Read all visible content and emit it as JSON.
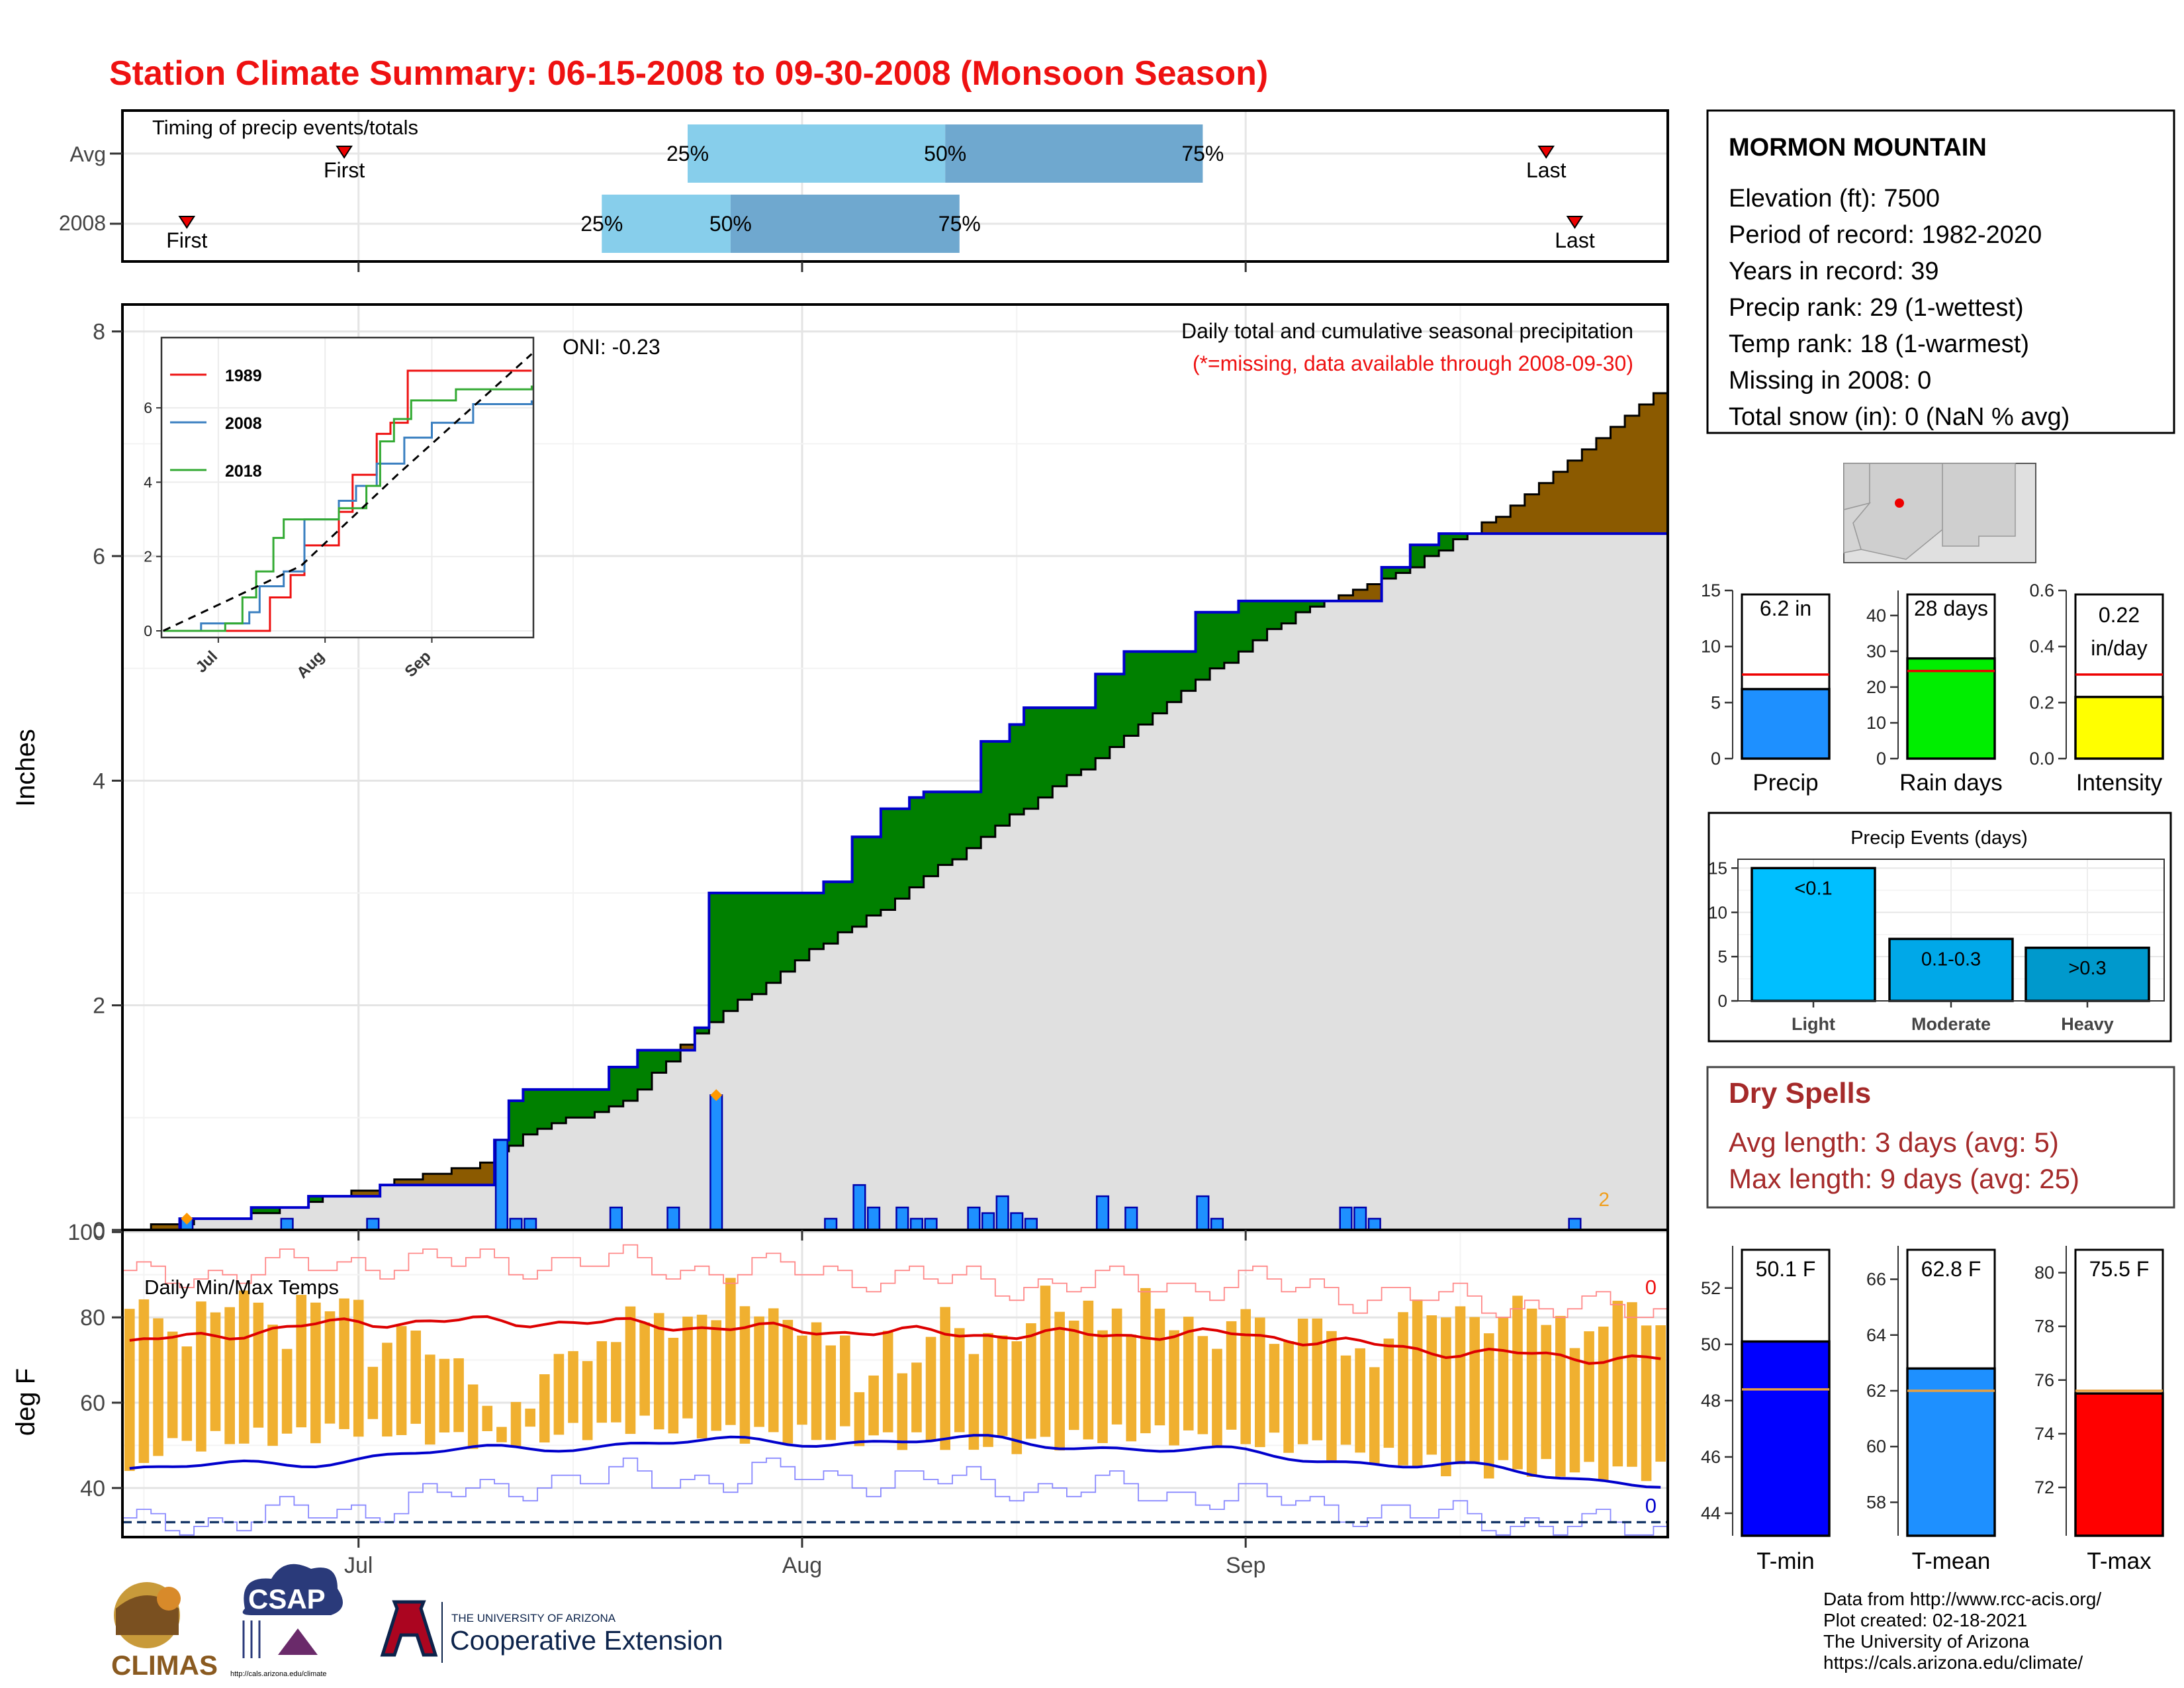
{
  "title": "Station Climate Summary: 06-15-2008 to 09-30-2008 (Monsoon Season)",
  "timing": {
    "label": "Timing of precip events/totals",
    "rows": [
      "Avg",
      "2008"
    ],
    "first_label": "First",
    "last_label": "Last",
    "pct_labels": [
      "25%",
      "50%",
      "75%"
    ]
  },
  "station": {
    "name": "MORMON MOUNTAIN",
    "lines": [
      "Elevation (ft): 7500",
      "Period of record: 1982-2020",
      "Years in record: 39",
      "Precip rank: 29 (1-wettest)",
      "Temp rank: 18 (1-warmest)",
      "Missing in 2008: 0",
      "Total snow (in): 0 (NaN % avg)"
    ]
  },
  "precip_panel": {
    "ylabel": "Inches",
    "heading": "Daily total and cumulative seasonal precipitation",
    "missing_note": "(*=missing, data available through 2008-09-30)",
    "oni": "ONI: -0.23",
    "corner_count": "2",
    "yticks": [
      "0",
      "2",
      "4",
      "6",
      "8"
    ]
  },
  "inset": {
    "legend": [
      "1989",
      "2008",
      "2018"
    ],
    "yticks": [
      "0",
      "2",
      "4",
      "6"
    ],
    "xticks": [
      "Jul",
      "Aug",
      "Sep"
    ]
  },
  "temp_panel": {
    "ylabel": "deg F",
    "heading": "Daily Min/Max Temps",
    "top_count": "0",
    "bottom_count": "0",
    "yticks": [
      "40",
      "60",
      "80",
      "100"
    ]
  },
  "xaxis": {
    "ticks": [
      "Jul",
      "Aug",
      "Sep"
    ]
  },
  "summary_bars": {
    "precip": {
      "label": "Precip",
      "value_text": "6.2 in",
      "yticks": [
        "0",
        "5",
        "10",
        "15"
      ]
    },
    "raindays": {
      "label": "Rain days",
      "value_text": "28 days",
      "yticks": [
        "0",
        "10",
        "20",
        "30",
        "40"
      ]
    },
    "intensity": {
      "label": "Intensity",
      "value_text_1": "0.22",
      "value_text_2": "in/day",
      "yticks": [
        "0.0",
        "0.2",
        "0.4",
        "0.6"
      ]
    }
  },
  "events": {
    "title": "Precip Events (days)",
    "yticks": [
      "0",
      "5",
      "10",
      "15"
    ]
  },
  "dry_spells": {
    "title": "Dry Spells",
    "avg": "Avg length: 3 days (avg: 5)",
    "max": "Max length: 9 days (avg: 25)"
  },
  "temp_bars": {
    "tmin": {
      "label": "T-min",
      "value_text": "50.1 F",
      "yticks": [
        "44",
        "46",
        "48",
        "50",
        "52"
      ]
    },
    "tmean": {
      "label": "T-mean",
      "value_text": "62.8 F",
      "yticks": [
        "58",
        "60",
        "62",
        "64",
        "66"
      ]
    },
    "tmax": {
      "label": "T-max",
      "value_text": "75.5 F",
      "yticks": [
        "72",
        "74",
        "76",
        "78",
        "80"
      ]
    }
  },
  "footer": {
    "lines": [
      "Data from http://www.rcc-acis.org/",
      "Plot created: 02-18-2021",
      "The University of Arizona",
      "https://cals.arizona.edu/climate/"
    ],
    "logos": {
      "climas": "CLIMAS",
      "csap": "CSAP",
      "csap_url": "http://cals.arizona.edu/climate",
      "ua_small": "THE UNIVERSITY OF ARIZONA",
      "ua_big": "Cooperative Extension"
    }
  },
  "colors": {
    "title": "#ee1111",
    "green_surplus": "#008000",
    "brown_deficit": "#8b5a00",
    "normal_fill": "#e0e0e0",
    "daily_bar": "#1e90ff",
    "line_2008": "#0000cc",
    "quartile_light": "#87ceeb",
    "quartile_dark": "#6fa8cf",
    "temp_bar": "#f0b030",
    "avg_max": "#dd0000",
    "avg_min": "#0000cc",
    "dry_spells": "#a52a2a"
  },
  "chart_data": [
    {
      "type": "bar",
      "name": "Timing of precip events/totals",
      "categories": [
        "Avg",
        "2008"
      ],
      "x_range_dates": [
        "2008-06-15",
        "2008-09-30"
      ],
      "avg": {
        "first": "2008-06-30",
        "p25": "2008-07-24",
        "p50": "2008-08-11",
        "p75": "2008-08-29",
        "last": "2008-09-22"
      },
      "y2008": {
        "first": "2008-06-19",
        "p25": "2008-07-18",
        "p50": "2008-07-27",
        "p75": "2008-08-12",
        "last": "2008-09-24"
      }
    },
    {
      "type": "area",
      "name": "Daily total and cumulative seasonal precipitation",
      "xlabel": "",
      "ylabel": "Inches",
      "x_range": [
        "2008-06-15",
        "2008-09-30"
      ],
      "ylim": [
        0,
        8
      ],
      "cumulative_2008": [
        [
          "2008-06-15",
          0
        ],
        [
          "2008-06-19",
          0.1
        ],
        [
          "2008-06-24",
          0.2
        ],
        [
          "2008-06-28",
          0.3
        ],
        [
          "2008-07-03",
          0.4
        ],
        [
          "2008-07-11",
          0.8
        ],
        [
          "2008-07-12",
          1.15
        ],
        [
          "2008-07-13",
          1.25
        ],
        [
          "2008-07-19",
          1.45
        ],
        [
          "2008-07-21",
          1.6
        ],
        [
          "2008-07-25",
          1.8
        ],
        [
          "2008-07-26",
          3.0
        ],
        [
          "2008-08-03",
          3.1
        ],
        [
          "2008-08-05",
          3.5
        ],
        [
          "2008-08-07",
          3.75
        ],
        [
          "2008-08-09",
          3.85
        ],
        [
          "2008-08-10",
          3.9
        ],
        [
          "2008-08-14",
          4.35
        ],
        [
          "2008-08-16",
          4.5
        ],
        [
          "2008-08-17",
          4.65
        ],
        [
          "2008-08-22",
          4.95
        ],
        [
          "2008-08-24",
          5.15
        ],
        [
          "2008-08-29",
          5.5
        ],
        [
          "2008-09-01",
          5.6
        ],
        [
          "2008-09-11",
          5.9
        ],
        [
          "2008-09-13",
          6.1
        ],
        [
          "2008-09-15",
          6.2
        ],
        [
          "2008-09-30",
          6.2
        ]
      ],
      "normal_cumulative": [
        [
          "2008-06-15",
          0
        ],
        [
          "2008-06-25",
          0.15
        ],
        [
          "2008-07-03",
          0.4
        ],
        [
          "2008-07-10",
          0.6
        ],
        [
          "2008-07-13",
          0.85
        ],
        [
          "2008-07-20",
          1.15
        ],
        [
          "2008-07-25",
          1.75
        ],
        [
          "2008-08-01",
          2.4
        ],
        [
          "2008-08-08",
          2.95
        ],
        [
          "2008-08-15",
          3.6
        ],
        [
          "2008-08-22",
          4.2
        ],
        [
          "2008-08-29",
          4.9
        ],
        [
          "2008-09-05",
          5.5
        ],
        [
          "2008-09-12",
          5.85
        ],
        [
          "2008-09-19",
          6.35
        ],
        [
          "2008-09-26",
          7.05
        ],
        [
          "2008-09-30",
          7.45
        ]
      ],
      "daily_precip": [
        [
          "2008-06-19",
          0.1
        ],
        [
          "2008-06-26",
          0.1
        ],
        [
          "2008-07-02",
          0.1
        ],
        [
          "2008-07-11",
          0.8
        ],
        [
          "2008-07-12",
          0.1
        ],
        [
          "2008-07-13",
          0.1
        ],
        [
          "2008-07-19",
          0.2
        ],
        [
          "2008-07-23",
          0.2
        ],
        [
          "2008-07-26",
          1.2
        ],
        [
          "2008-08-03",
          0.1
        ],
        [
          "2008-08-05",
          0.4
        ],
        [
          "2008-08-06",
          0.2
        ],
        [
          "2008-08-08",
          0.2
        ],
        [
          "2008-08-09",
          0.1
        ],
        [
          "2008-08-10",
          0.1
        ],
        [
          "2008-08-13",
          0.2
        ],
        [
          "2008-08-14",
          0.15
        ],
        [
          "2008-08-15",
          0.3
        ],
        [
          "2008-08-16",
          0.15
        ],
        [
          "2008-08-17",
          0.1
        ],
        [
          "2008-08-22",
          0.3
        ],
        [
          "2008-08-24",
          0.2
        ],
        [
          "2008-08-29",
          0.3
        ],
        [
          "2008-08-30",
          0.1
        ],
        [
          "2008-09-08",
          0.2
        ],
        [
          "2008-09-09",
          0.2
        ],
        [
          "2008-09-10",
          0.1
        ],
        [
          "2008-09-24",
          0.1
        ]
      ],
      "markers": [
        [
          "2008-06-19",
          0.1
        ],
        [
          "2008-07-26",
          1.2
        ]
      ]
    },
    {
      "type": "line",
      "name": "Inset cumulative precipitation",
      "ylim": [
        0,
        7
      ],
      "x_range": [
        "2008-06-15",
        "2008-09-30"
      ],
      "series": [
        {
          "name": "1989",
          "values": [
            [
              "2008-06-15",
              0
            ],
            [
              "2008-07-14",
              0
            ],
            [
              "2008-07-16",
              0.9
            ],
            [
              "2008-07-22",
              1.5
            ],
            [
              "2008-07-26",
              2.3
            ],
            [
              "2008-08-05",
              3.2
            ],
            [
              "2008-08-09",
              4.2
            ],
            [
              "2008-08-16",
              5.3
            ],
            [
              "2008-08-20",
              5.6
            ],
            [
              "2008-08-25",
              7.0
            ],
            [
              "2008-09-30",
              7.0
            ]
          ]
        },
        {
          "name": "2008",
          "values": [
            [
              "2008-06-15",
              0
            ],
            [
              "2008-06-26",
              0.2
            ],
            [
              "2008-07-10",
              0.5
            ],
            [
              "2008-07-13",
              1.2
            ],
            [
              "2008-07-20",
              1.6
            ],
            [
              "2008-07-26",
              3.0
            ],
            [
              "2008-08-05",
              3.5
            ],
            [
              "2008-08-10",
              3.9
            ],
            [
              "2008-08-16",
              4.5
            ],
            [
              "2008-08-24",
              5.2
            ],
            [
              "2008-09-01",
              5.6
            ],
            [
              "2008-09-13",
              6.1
            ],
            [
              "2008-09-30",
              6.2
            ]
          ]
        },
        {
          "name": "2018",
          "values": [
            [
              "2008-06-15",
              0
            ],
            [
              "2008-07-03",
              0.2
            ],
            [
              "2008-07-08",
              0.9
            ],
            [
              "2008-07-12",
              1.6
            ],
            [
              "2008-07-17",
              2.5
            ],
            [
              "2008-07-20",
              3.0
            ],
            [
              "2008-07-24",
              3.0
            ],
            [
              "2008-08-05",
              3.3
            ],
            [
              "2008-08-13",
              3.9
            ],
            [
              "2008-08-17",
              5.1
            ],
            [
              "2008-08-21",
              5.7
            ],
            [
              "2008-08-26",
              6.2
            ],
            [
              "2008-09-08",
              6.5
            ],
            [
              "2008-09-30",
              6.6
            ]
          ]
        }
      ],
      "normal_dashed": [
        [
          "2008-06-15",
          0
        ],
        [
          "2008-07-25",
          1.75
        ],
        [
          "2008-08-22",
          4.2
        ],
        [
          "2008-09-30",
          7.45
        ]
      ]
    },
    {
      "type": "line",
      "name": "Daily Min/Max Temps",
      "ylabel": "deg F",
      "ylim": [
        30,
        100
      ],
      "x_range": [
        "2008-06-15",
        "2008-09-30"
      ],
      "avg_max": [
        [
          "2008-06-15",
          74
        ],
        [
          "2008-07-01",
          79
        ],
        [
          "2008-07-15",
          79
        ],
        [
          "2008-08-01",
          77
        ],
        [
          "2008-08-15",
          76
        ],
        [
          "2008-09-01",
          76
        ],
        [
          "2008-09-15",
          72
        ],
        [
          "2008-09-30",
          70
        ]
      ],
      "avg_min": [
        [
          "2008-06-15",
          44
        ],
        [
          "2008-07-01",
          47
        ],
        [
          "2008-07-15",
          50
        ],
        [
          "2008-08-01",
          51
        ],
        [
          "2008-08-15",
          51
        ],
        [
          "2008-09-01",
          48
        ],
        [
          "2008-09-15",
          45
        ],
        [
          "2008-09-30",
          41
        ]
      ],
      "record_max": [
        [
          "2008-06-15",
          89
        ],
        [
          "2008-07-01",
          93
        ],
        [
          "2008-07-15",
          93
        ],
        [
          "2008-08-01",
          91
        ],
        [
          "2008-08-15",
          88
        ],
        [
          "2008-09-01",
          88
        ],
        [
          "2008-09-15",
          84
        ],
        [
          "2008-09-30",
          81
        ]
      ],
      "record_min": [
        [
          "2008-06-15",
          31
        ],
        [
          "2008-07-01",
          35
        ],
        [
          "2008-07-15",
          42
        ],
        [
          "2008-08-01",
          43
        ],
        [
          "2008-08-15",
          41
        ],
        [
          "2008-09-01",
          38
        ],
        [
          "2008-09-15",
          33
        ],
        [
          "2008-09-30",
          30
        ]
      ],
      "freeze_line": 32,
      "daily_range_sample": [
        [
          "2008-06-17",
          50,
          81
        ],
        [
          "2008-06-25",
          52,
          83
        ],
        [
          "2008-07-01",
          54,
          82
        ],
        [
          "2008-07-11",
          51,
          62
        ],
        [
          "2008-07-20",
          55,
          80
        ],
        [
          "2008-07-27",
          53,
          85
        ],
        [
          "2008-08-05",
          52,
          74
        ],
        [
          "2008-08-15",
          50,
          84
        ],
        [
          "2008-08-25",
          53,
          83
        ],
        [
          "2008-09-05",
          50,
          77
        ],
        [
          "2008-09-15",
          45,
          81
        ],
        [
          "2008-09-25",
          44,
          80
        ]
      ]
    },
    {
      "type": "bar",
      "name": "Season totals vs average",
      "categories": [
        "Precip",
        "Rain days",
        "Intensity"
      ],
      "values": [
        6.2,
        28,
        0.22
      ],
      "averages": [
        7.5,
        24.5,
        0.3
      ],
      "ylims": [
        [
          0,
          15
        ],
        [
          0,
          47
        ],
        [
          0,
          0.6
        ]
      ]
    },
    {
      "type": "bar",
      "name": "Precip Events (days)",
      "categories": [
        "Light",
        "Moderate",
        "Heavy"
      ],
      "bar_labels": [
        "<0.1",
        "0.1-0.3",
        ">0.3"
      ],
      "values": [
        15,
        7,
        6
      ],
      "ylim": [
        0,
        16
      ]
    },
    {
      "type": "bar",
      "name": "Season temperatures vs average",
      "categories": [
        "T-min",
        "T-mean",
        "T-max"
      ],
      "values": [
        50.1,
        62.8,
        75.5
      ],
      "averages": [
        48.4,
        62.0,
        75.6
      ],
      "ylims": [
        [
          43.2,
          53.5
        ],
        [
          56.8,
          67.2
        ],
        [
          70.2,
          81.0
        ]
      ]
    }
  ]
}
